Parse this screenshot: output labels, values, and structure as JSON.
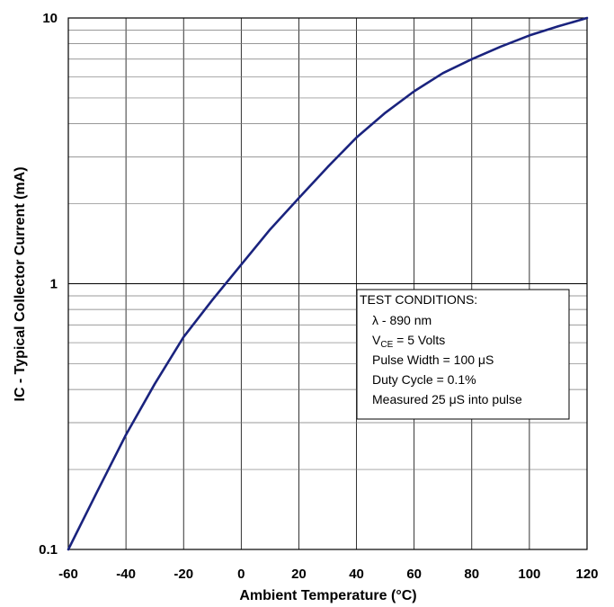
{
  "chart_data": {
    "type": "line",
    "title": "",
    "xlabel": "Ambient Temperature (°C)",
    "ylabel": "IC - Typical Collector Current (mA)",
    "xlim": [
      -60,
      120
    ],
    "ylim": [
      0.1,
      10
    ],
    "yscale": "log",
    "grid": true,
    "x_ticks": [
      "-60",
      "-40",
      "-20",
      "0",
      "20",
      "40",
      "60",
      "80",
      "100",
      "120"
    ],
    "y_ticks": [
      "0.1",
      "1",
      "10"
    ],
    "line_color": "#1a237e",
    "series": [
      {
        "name": "",
        "x": [
          -60,
          -50,
          -40,
          -30,
          -20,
          -10,
          0,
          10,
          20,
          30,
          40,
          50,
          60,
          70,
          80,
          90,
          100,
          110,
          120
        ],
        "y": [
          0.1,
          0.165,
          0.27,
          0.42,
          0.63,
          0.87,
          1.18,
          1.6,
          2.1,
          2.75,
          3.55,
          4.4,
          5.3,
          6.2,
          7.0,
          7.8,
          8.6,
          9.3,
          10.0
        ]
      }
    ],
    "annotation": {
      "title": "TEST CONDITIONS:",
      "lines": [
        {
          "prefix": "λ - 890 nm",
          "sub": "",
          "suffix": ""
        },
        {
          "prefix": "V",
          "sub": "CE",
          "suffix": " = 5 Volts"
        },
        {
          "prefix": "Pulse Width = 100 μS",
          "sub": "",
          "suffix": ""
        },
        {
          "prefix": "Duty Cycle = 0.1%",
          "sub": "",
          "suffix": ""
        },
        {
          "prefix": "Measured 25 μS into pulse",
          "sub": "",
          "suffix": ""
        }
      ]
    }
  }
}
